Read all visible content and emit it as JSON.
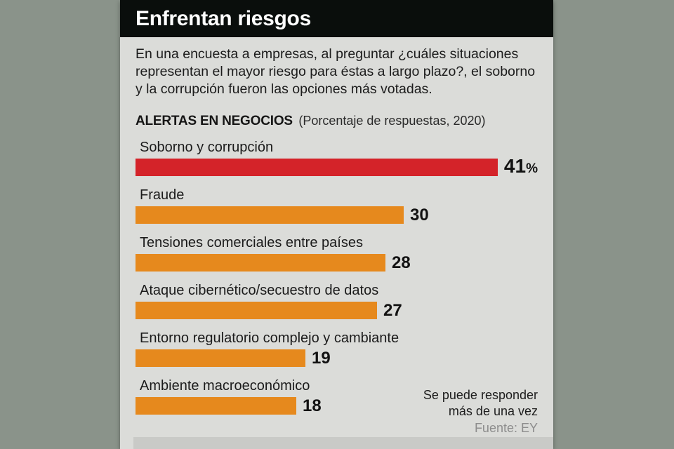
{
  "header": {
    "title": "Enfrentan riesgos"
  },
  "intro": "En una encuesta a empresas, al preguntar ¿cuáles situaciones representan el mayor riesgo para éstas a largo plazo?, el soborno y la corrupción fueron las opciones más votadas.",
  "chart": {
    "title": "ALERTAS EN NEGOCIOS",
    "subtitle": "(Porcentaje de respuestas, 2020)"
  },
  "chart_data": {
    "type": "bar",
    "orientation": "horizontal",
    "title": "ALERTAS EN NEGOCIOS",
    "subtitle": "(Porcentaje de respuestas, 2020)",
    "categories": [
      "Soborno y corrupción",
      "Fraude",
      "Tensiones comerciales entre países",
      "Ataque cibernético/secuestro de datos",
      "Entorno regulatorio complejo y cambiante",
      "Ambiente macroeconómico"
    ],
    "values": [
      41,
      30,
      28,
      27,
      19,
      18
    ],
    "value_suffixes": [
      "%",
      "",
      "",
      "",
      "",
      ""
    ],
    "xlim": [
      0,
      41
    ],
    "grid": false,
    "legend": false,
    "highlight_index": 0,
    "colors": {
      "highlight": "#d42329",
      "default": "#e6891d"
    }
  },
  "footer": {
    "note_line1": "Se puede responder",
    "note_line2": "más de una vez",
    "source": "Fuente: EY"
  },
  "colors": {
    "page_bg": "#8a938a",
    "card_bg": "#dbdcd9",
    "header_bg": "#0a0e0c",
    "body_text": "#1c1c1c",
    "source_text": "#8d8d8d"
  }
}
